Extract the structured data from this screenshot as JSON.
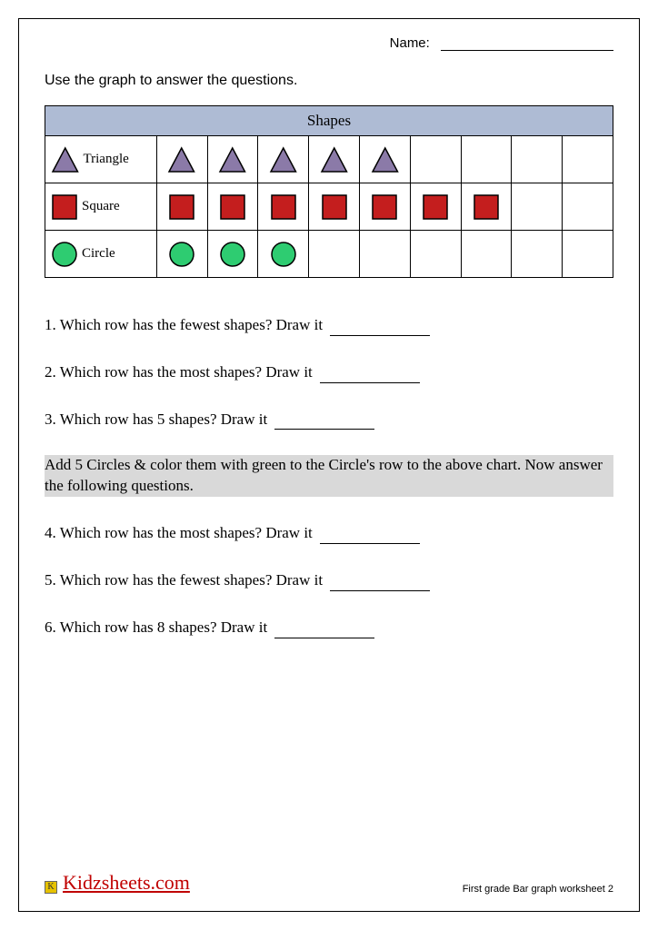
{
  "header": {
    "name_label": "Name:"
  },
  "instruction": "Use the graph to answer the questions.",
  "chart": {
    "title": "Shapes",
    "columns": 9,
    "rows": [
      {
        "shape": "triangle",
        "label": "Triangle",
        "fill": "#8b7aa8",
        "stroke": "#000000",
        "count": 5
      },
      {
        "shape": "square",
        "label": "Square",
        "fill": "#c41e1e",
        "stroke": "#000000",
        "count": 7
      },
      {
        "shape": "circle",
        "label": "Circle",
        "fill": "#2ecc71",
        "stroke": "#000000",
        "count": 3
      }
    ],
    "header_bg": "#aebbd4",
    "border_color": "#000000",
    "icon_size": 30
  },
  "questions": [
    {
      "num": "1.",
      "text": "Which row has the fewest shapes? Draw it"
    },
    {
      "num": "2.",
      "text": "Which row has the most shapes? Draw it"
    },
    {
      "num": "3.",
      "text": "Which row has 5 shapes? Draw it"
    }
  ],
  "highlight_text": "Add 5 Circles & color them with green to the Circle's row to the above chart. Now answer the following questions.",
  "questions2": [
    {
      "num": "4.",
      "text": "Which row has the most shapes? Draw it"
    },
    {
      "num": "5.",
      "text": "Which row has the fewest shapes? Draw it"
    },
    {
      "num": "6.",
      "text": "Which row has 8 shapes? Draw it"
    }
  ],
  "footer": {
    "brand": "Kidzsheets.com",
    "brand_icon_letter": "K",
    "note": "First grade Bar graph worksheet 2"
  }
}
